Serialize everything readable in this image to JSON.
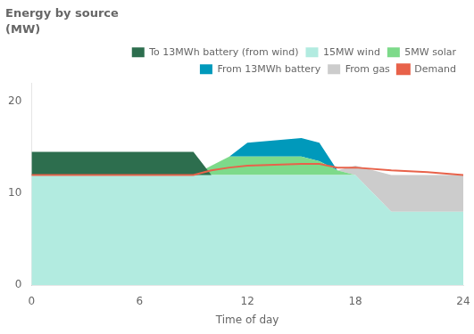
{
  "chart_data": {
    "type": "area",
    "title": "Energy by source",
    "subtitle": "(MW)",
    "xlabel": "Time of day",
    "x": [
      0,
      6,
      7,
      9,
      10,
      11,
      12,
      15,
      16,
      17,
      18,
      20,
      22,
      24
    ],
    "series": [
      {
        "name": "To 13MWh battery (from wind)",
        "color": "#2d6e4e",
        "type": "area",
        "values": [
          2.5,
          2.5,
          2.5,
          2.5,
          0,
          0,
          0,
          0,
          0,
          0,
          0,
          0,
          0,
          0
        ]
      },
      {
        "name": "15MW wind",
        "color": "#b2ebe0",
        "type": "area",
        "values": [
          12,
          12,
          12,
          12,
          12,
          12,
          12,
          12,
          12,
          12,
          12,
          8,
          8,
          8
        ]
      },
      {
        "name": "5MW solar",
        "color": "#7dda8a",
        "type": "area",
        "values": [
          0,
          0,
          0,
          0,
          1,
          2,
          2,
          2,
          1.5,
          0.5,
          0,
          0,
          0,
          0
        ]
      },
      {
        "name": "From 13MWh battery",
        "color": "#0099bb",
        "type": "area",
        "values": [
          0,
          0,
          0,
          0,
          0,
          0,
          1.5,
          2,
          2,
          0,
          0,
          0,
          0,
          0
        ]
      },
      {
        "name": "From gas",
        "color": "#cccccc",
        "type": "area",
        "values": [
          0,
          0,
          0,
          0,
          0,
          0,
          0,
          0,
          0,
          0,
          1,
          4,
          4,
          4
        ]
      },
      {
        "name": "Demand",
        "color": "#e8624a",
        "type": "line",
        "values": [
          12,
          12,
          12,
          12,
          12.5,
          12.8,
          13,
          13.2,
          13.2,
          12.8,
          12.8,
          12.5,
          12.3,
          12
        ]
      }
    ],
    "xlim": [
      0,
      24
    ],
    "xticks": [
      0,
      6,
      12,
      18,
      24
    ],
    "ylim": [
      0,
      22
    ],
    "yticks": [
      0,
      10,
      20
    ],
    "stacked": true,
    "grid": false,
    "legend": "top"
  }
}
